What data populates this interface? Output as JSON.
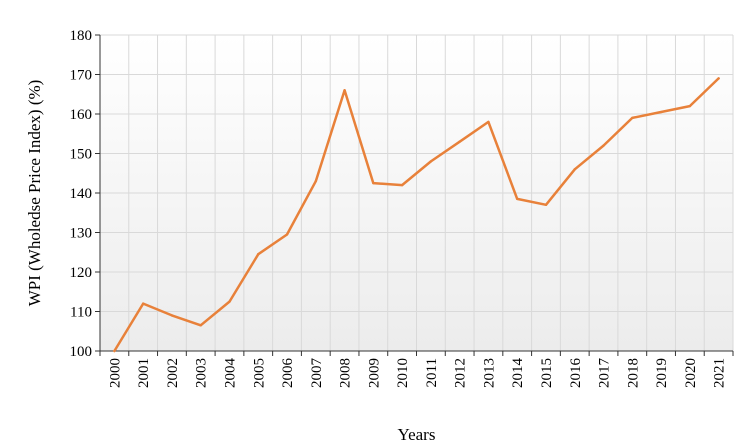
{
  "chart_data": {
    "type": "line",
    "title": "",
    "xlabel": "Years",
    "ylabel": "WPI (Wholedse Price Index) (%)",
    "categories": [
      "2000",
      "2001",
      "2002",
      "2003",
      "2004",
      "2005",
      "2006",
      "2007",
      "2008",
      "2009",
      "2010",
      "2011",
      "2012",
      "2013",
      "2014",
      "2015",
      "2016",
      "2017",
      "2018",
      "2019",
      "2020",
      "2021"
    ],
    "series": [
      {
        "values": [
          100,
          112,
          109,
          106.5,
          112.5,
          124.5,
          129.5,
          143,
          166,
          142.5,
          142,
          148,
          153,
          158,
          138.5,
          137,
          146,
          152,
          159,
          160.5,
          162,
          169
        ]
      }
    ],
    "ylim": [
      100,
      180
    ],
    "yticks": [
      100,
      110,
      120,
      130,
      140,
      150,
      160,
      170,
      180
    ],
    "grid": true,
    "line_color": "#E8813A",
    "gridline_color": "#d9d9d9",
    "plot_gradient_top": "#ffffff",
    "plot_gradient_bottom": "#ececec"
  }
}
